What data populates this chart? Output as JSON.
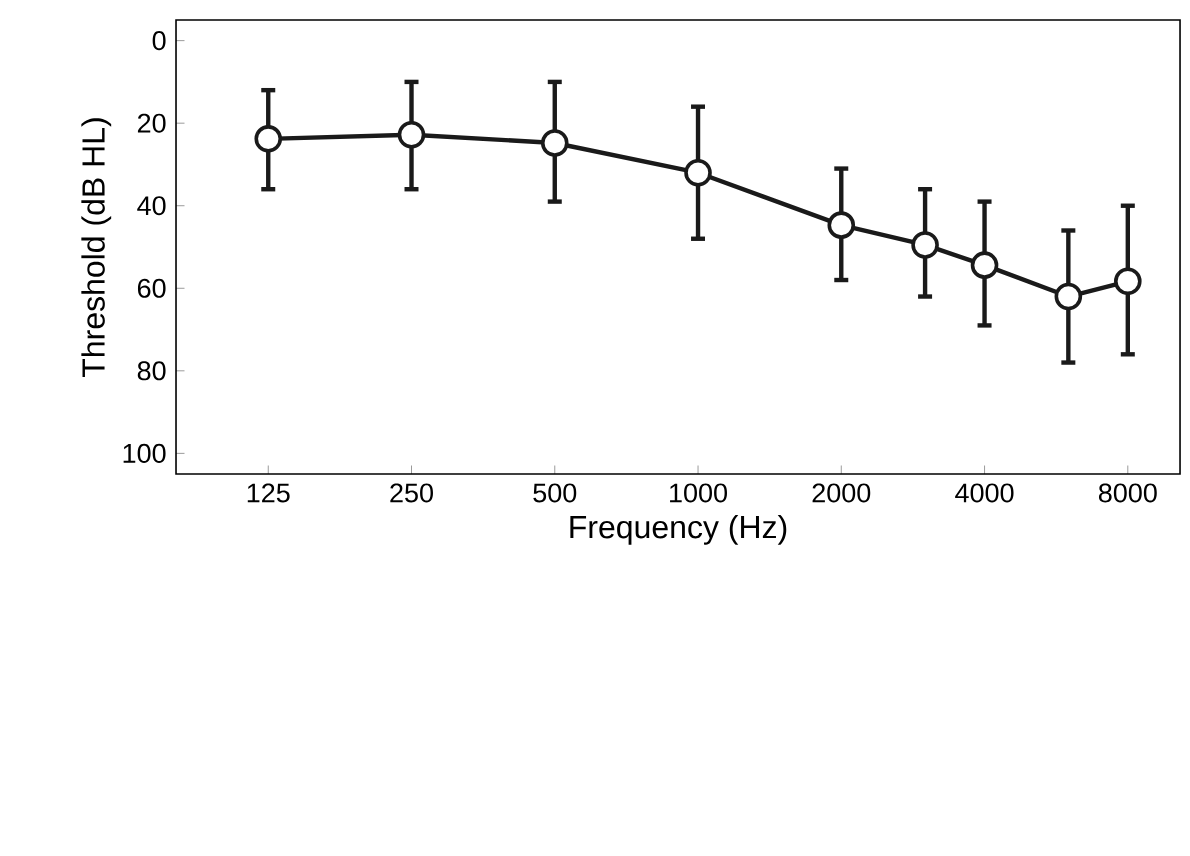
{
  "chart_data": {
    "type": "line",
    "xlabel": "Frequency (Hz)",
    "ylabel": "Threshold (dB HL)",
    "x": [
      125,
      250,
      500,
      1000,
      2000,
      3000,
      4000,
      6000,
      8000
    ],
    "series": [
      {
        "color": "#1a1a1a",
        "values": [
          23.8,
          22.8,
          24.8,
          32,
          44.7,
          49.5,
          54.4,
          62,
          58.3
        ],
        "errors": [
          [
            12,
            36
          ],
          [
            10,
            36
          ],
          [
            10,
            39
          ],
          [
            16,
            48
          ],
          [
            31,
            58
          ],
          [
            36,
            62
          ],
          [
            39,
            69
          ],
          [
            46,
            78
          ],
          [
            40,
            76
          ]
        ]
      }
    ],
    "log": "x",
    "marker": "circle",
    "line_style": "solid",
    "xlim": [
      80,
      10300
    ],
    "xticks": [
      125,
      250,
      500,
      1000,
      2000,
      4000,
      8000
    ],
    "ylim": [
      105,
      -5
    ],
    "yticks": [
      0,
      20,
      40,
      60,
      80,
      100
    ]
  }
}
